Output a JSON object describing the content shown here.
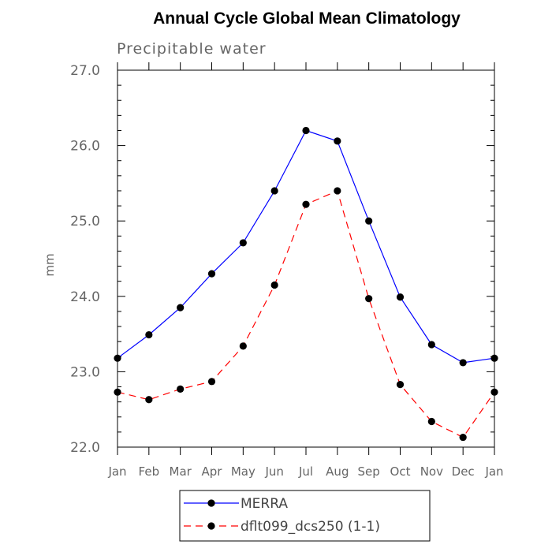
{
  "chart_data": {
    "type": "line",
    "title": "Annual Cycle Global Mean Climatology",
    "subtitle": "Precipitable water",
    "xlabel": "",
    "ylabel": "mm",
    "categories": [
      "Jan",
      "Feb",
      "Mar",
      "Apr",
      "May",
      "Jun",
      "Jul",
      "Aug",
      "Sep",
      "Oct",
      "Nov",
      "Dec",
      "Jan"
    ],
    "ylim": [
      22.0,
      27.0
    ],
    "yticks": [
      22.0,
      23.0,
      24.0,
      25.0,
      26.0,
      27.0
    ],
    "ytick_labels": [
      "22.0",
      "23.0",
      "24.0",
      "25.0",
      "26.0",
      "27.0"
    ],
    "grid": false,
    "legend_position": "bottom",
    "series": [
      {
        "name": "MERRA",
        "color": "#0000ff",
        "dash": "solid",
        "marker": "filled-circle",
        "values": [
          23.18,
          23.49,
          23.85,
          24.3,
          24.71,
          25.4,
          26.2,
          26.06,
          25.0,
          23.99,
          23.36,
          23.12,
          23.18
        ]
      },
      {
        "name": "dflt099_dcs250 (1-1)",
        "color": "#ff0000",
        "dash": "dashed",
        "marker": "filled-circle",
        "values": [
          22.73,
          22.63,
          22.77,
          22.87,
          23.34,
          24.15,
          25.22,
          25.4,
          23.97,
          22.83,
          22.34,
          22.13,
          22.73
        ]
      }
    ]
  }
}
